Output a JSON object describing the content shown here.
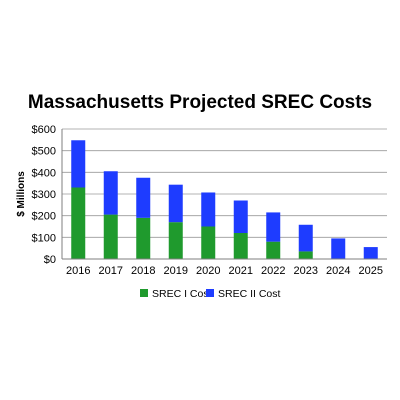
{
  "chart_data": {
    "type": "bar",
    "stacked": true,
    "title": "Massachusetts Projected SREC Costs",
    "ylabel": "$ Millions",
    "xlabel": "",
    "categories": [
      "2016",
      "2017",
      "2018",
      "2019",
      "2020",
      "2021",
      "2022",
      "2023",
      "2024",
      "2025"
    ],
    "ylim": [
      0,
      600
    ],
    "yticks": [
      0,
      100,
      200,
      300,
      400,
      500,
      600
    ],
    "ytick_labels": [
      "$0",
      "$100",
      "$200",
      "$300",
      "$400",
      "$500",
      "$600"
    ],
    "grid": true,
    "legend_position": "bottom",
    "series": [
      {
        "name": "SREC I Cost",
        "color": "#1f9a2d",
        "values": [
          330,
          205,
          190,
          170,
          150,
          120,
          80,
          35,
          0,
          0
        ]
      },
      {
        "name": "SREC II Cost",
        "color": "#1e3cff",
        "values": [
          218,
          200,
          185,
          173,
          157,
          150,
          135,
          123,
          95,
          55
        ]
      }
    ]
  }
}
